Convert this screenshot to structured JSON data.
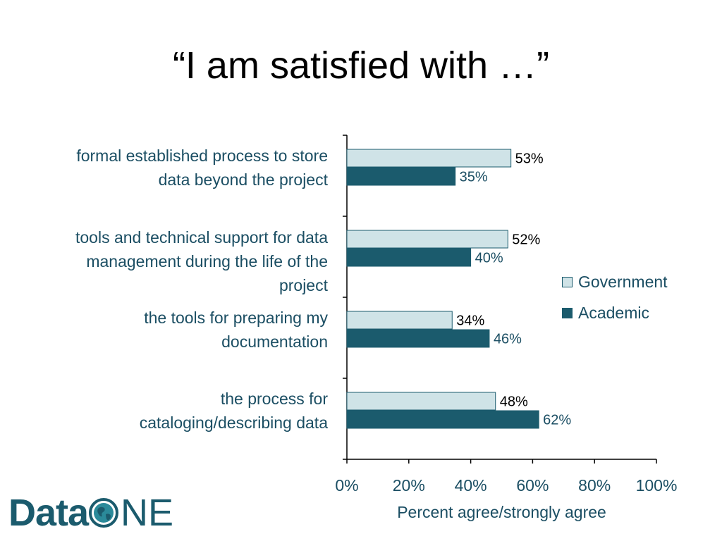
{
  "slide": {
    "title": "“I am satisfied with …”"
  },
  "chart_data": {
    "type": "bar",
    "orientation": "horizontal",
    "categories": [
      "formal established process to store data beyond the project",
      "tools and technical support for data management during the life of the project",
      "the tools for preparing my documentation",
      "the process for cataloging/describing data"
    ],
    "series": [
      {
        "name": "Government",
        "values": [
          53,
          52,
          34,
          48
        ],
        "labels": [
          "53%",
          "52%",
          "34%",
          "48%"
        ],
        "color": "#cfe3e7"
      },
      {
        "name": "Academic",
        "values": [
          35,
          40,
          46,
          62
        ],
        "labels": [
          "35%",
          "40%",
          "46%",
          "62%"
        ],
        "color": "#1b5b6d"
      }
    ],
    "xlabel": "Percent agree/strongly agree",
    "xlim": [
      0,
      100
    ],
    "xticks": [
      0,
      20,
      40,
      60,
      80,
      100
    ],
    "xtick_labels": [
      "0%",
      "20%",
      "40%",
      "60%",
      "80%",
      "100%"
    ],
    "legend": {
      "position": "right"
    },
    "grid": false
  },
  "category_labels": [
    [
      "formal established process to store",
      "data beyond the project"
    ],
    [
      "tools and technical support for data",
      "management during the life of the",
      "project"
    ],
    [
      "the tools for preparing my",
      "documentation"
    ],
    [
      "the process for",
      "cataloging/describing data"
    ]
  ],
  "logo": {
    "text_data": "Data",
    "text_one": "NE"
  },
  "colors": {
    "text": "#1b4e63",
    "government": "#cfe3e7",
    "academic": "#1b5b6d"
  }
}
